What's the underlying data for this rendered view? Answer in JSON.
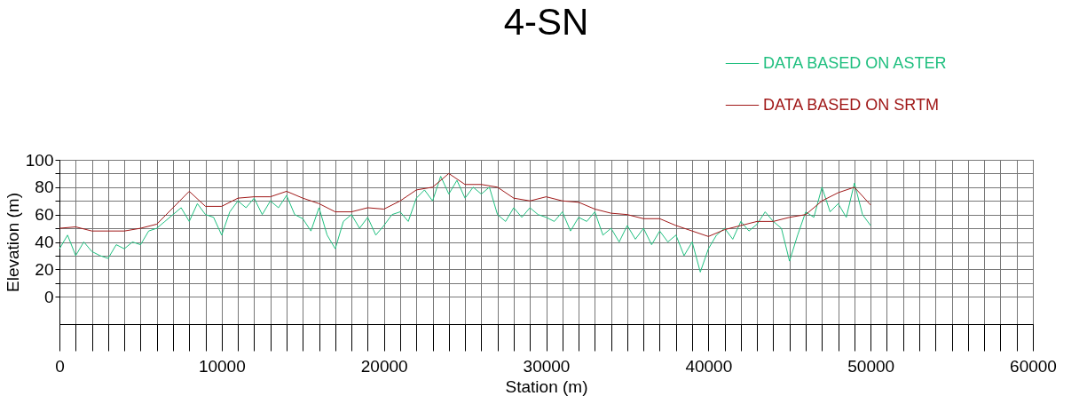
{
  "chart_data": {
    "type": "line",
    "title": "4-SN",
    "xlabel": "Station (m)",
    "ylabel": "Elevation (m)",
    "xlim": [
      0,
      60000
    ],
    "ylim": [
      -20,
      100
    ],
    "xticks": [
      0,
      {
        "value": 1000,
        "label": null
      },
      {
        "value": 2000,
        "label": null
      },
      {
        "value": 3000,
        "label": null
      },
      {
        "value": 4000,
        "label": null
      },
      {
        "value": 5000,
        "label": null
      },
      {
        "value": 6000,
        "label": null
      },
      {
        "value": 7000,
        "label": null
      },
      {
        "value": 8000,
        "label": null
      },
      {
        "value": 9000,
        "label": null
      },
      10000,
      {
        "value": 11000,
        "label": null
      },
      {
        "value": 12000,
        "label": null
      },
      {
        "value": 13000,
        "label": null
      },
      {
        "value": 14000,
        "label": null
      },
      {
        "value": 15000,
        "label": null
      },
      {
        "value": 16000,
        "label": null
      },
      {
        "value": 17000,
        "label": null
      },
      {
        "value": 18000,
        "label": null
      },
      {
        "value": 19000,
        "label": null
      },
      20000,
      {
        "value": 21000,
        "label": null
      },
      {
        "value": 22000,
        "label": null
      },
      {
        "value": 23000,
        "label": null
      },
      {
        "value": 24000,
        "label": null
      },
      {
        "value": 25000,
        "label": null
      },
      {
        "value": 26000,
        "label": null
      },
      {
        "value": 27000,
        "label": null
      },
      {
        "value": 28000,
        "label": null
      },
      {
        "value": 29000,
        "label": null
      },
      30000,
      {
        "value": 31000,
        "label": null
      },
      {
        "value": 32000,
        "label": null
      },
      {
        "value": 33000,
        "label": null
      },
      {
        "value": 34000,
        "label": null
      },
      {
        "value": 35000,
        "label": null
      },
      {
        "value": 36000,
        "label": null
      },
      {
        "value": 37000,
        "label": null
      },
      {
        "value": 38000,
        "label": null
      },
      {
        "value": 39000,
        "label": null
      },
      40000,
      {
        "value": 41000,
        "label": null
      },
      {
        "value": 42000,
        "label": null
      },
      {
        "value": 43000,
        "label": null
      },
      {
        "value": 44000,
        "label": null
      },
      {
        "value": 45000,
        "label": null
      },
      {
        "value": 46000,
        "label": null
      },
      {
        "value": 47000,
        "label": null
      },
      {
        "value": 48000,
        "label": null
      },
      {
        "value": 49000,
        "label": null
      },
      50000,
      {
        "value": 51000,
        "label": null
      },
      {
        "value": 52000,
        "label": null
      },
      {
        "value": 53000,
        "label": null
      },
      {
        "value": 54000,
        "label": null
      },
      {
        "value": 55000,
        "label": null
      },
      {
        "value": 56000,
        "label": null
      },
      {
        "value": 57000,
        "label": null
      },
      {
        "value": 58000,
        "label": null
      },
      {
        "value": 59000,
        "label": null
      },
      60000
    ],
    "yticks": [
      0,
      {
        "value": 10,
        "label": null
      },
      20,
      {
        "value": 30,
        "label": null
      },
      40,
      {
        "value": 50,
        "label": null
      },
      60,
      {
        "value": 70,
        "label": null
      },
      80,
      {
        "value": 90,
        "label": null
      },
      100
    ],
    "grid": true,
    "legend": "top right",
    "marker": "none",
    "line_style": "solid",
    "series": [
      {
        "name": "DATA BASED ON ASTER",
        "color": "#1fbf7f",
        "x": [
          0,
          500,
          1000,
          1500,
          2000,
          2500,
          3000,
          3500,
          4000,
          4500,
          5000,
          5500,
          6000,
          6500,
          7000,
          7500,
          8000,
          8500,
          9000,
          9500,
          10000,
          10500,
          11000,
          11500,
          12000,
          12500,
          13000,
          13500,
          14000,
          14500,
          15000,
          15500,
          16000,
          16500,
          17000,
          17500,
          18000,
          18500,
          19000,
          19500,
          20000,
          20500,
          21000,
          21500,
          22000,
          22500,
          23000,
          23500,
          24000,
          24500,
          25000,
          25500,
          26000,
          26500,
          27000,
          27500,
          28000,
          28500,
          29000,
          29500,
          30000,
          30500,
          31000,
          31500,
          32000,
          32500,
          33000,
          33500,
          34000,
          34500,
          35000,
          35500,
          36000,
          36500,
          37000,
          37500,
          38000,
          38500,
          39000,
          39500,
          40000,
          40500,
          41000,
          41500,
          42000,
          42500,
          43000,
          43500,
          44000,
          44500,
          45000,
          45500,
          46000,
          46500,
          47000,
          47500,
          48000,
          48500,
          49000,
          49500,
          50000
        ],
        "values": [
          35,
          45,
          30,
          40,
          33,
          30,
          28,
          38,
          35,
          40,
          38,
          48,
          50,
          55,
          60,
          65,
          55,
          68,
          60,
          58,
          45,
          62,
          70,
          65,
          72,
          60,
          70,
          65,
          74,
          60,
          57,
          48,
          65,
          45,
          35,
          55,
          60,
          50,
          58,
          45,
          52,
          60,
          62,
          55,
          72,
          78,
          70,
          88,
          75,
          85,
          72,
          80,
          75,
          80,
          60,
          55,
          65,
          58,
          65,
          60,
          58,
          55,
          62,
          48,
          58,
          55,
          62,
          45,
          50,
          40,
          52,
          42,
          50,
          38,
          48,
          40,
          45,
          30,
          40,
          18,
          35,
          45,
          50,
          42,
          55,
          48,
          53,
          62,
          55,
          50,
          26,
          45,
          62,
          58,
          80,
          62,
          68,
          58,
          83,
          60,
          52
        ]
      },
      {
        "name": "DATA BASED ON SRTM",
        "color": "#a01818",
        "x": [
          0,
          1000,
          2000,
          3000,
          4000,
          5000,
          6000,
          7000,
          8000,
          9000,
          10000,
          11000,
          12000,
          13000,
          14000,
          15000,
          16000,
          17000,
          18000,
          19000,
          20000,
          21000,
          22000,
          23000,
          24000,
          25000,
          26000,
          27000,
          28000,
          29000,
          30000,
          31000,
          32000,
          33000,
          34000,
          35000,
          36000,
          37000,
          38000,
          39000,
          40000,
          41000,
          42000,
          43000,
          44000,
          45000,
          46000,
          47000,
          48000,
          49000,
          50000
        ],
        "values": [
          50,
          51,
          48,
          48,
          48,
          50,
          53,
          65,
          77,
          66,
          66,
          72,
          73,
          73,
          77,
          72,
          68,
          62,
          62,
          65,
          64,
          70,
          78,
          80,
          90,
          82,
          82,
          80,
          72,
          70,
          73,
          70,
          69,
          64,
          61,
          60,
          57,
          57,
          52,
          48,
          44,
          49,
          52,
          55,
          55,
          58,
          60,
          70,
          76,
          80,
          67
        ]
      }
    ]
  }
}
